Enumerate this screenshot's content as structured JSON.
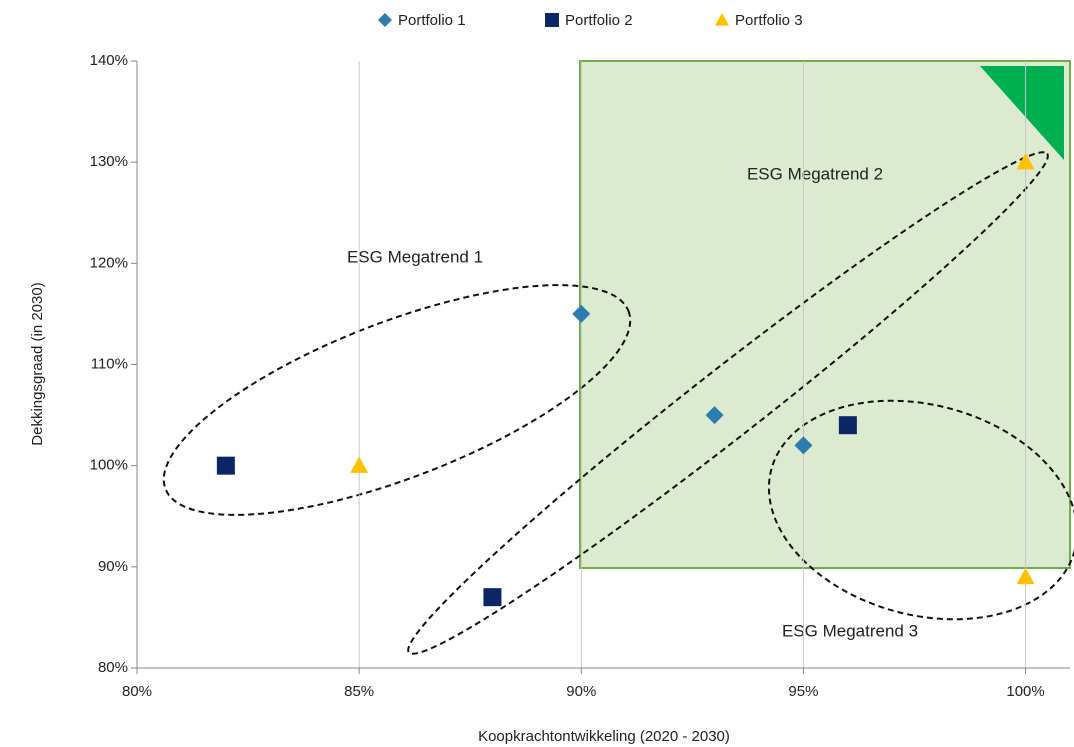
{
  "chart_data": {
    "type": "scatter",
    "x_label": "Koopkrachtontwikkeling (2020 - 2030)",
    "y_label": "Dekkingsgraad (in 2030)",
    "xlim": [
      80,
      101
    ],
    "ylim": [
      80,
      140
    ],
    "xticks": [
      {
        "value": 80,
        "label": "80%"
      },
      {
        "value": 85,
        "label": "85%"
      },
      {
        "value": 90,
        "label": "90%"
      },
      {
        "value": 95,
        "label": "95%"
      },
      {
        "value": 100,
        "label": "100%"
      }
    ],
    "yticks": [
      {
        "value": 80,
        "label": "80%"
      },
      {
        "value": 90,
        "label": "90%"
      },
      {
        "value": 100,
        "label": "100%"
      },
      {
        "value": 110,
        "label": "110%"
      },
      {
        "value": 120,
        "label": "120%"
      },
      {
        "value": 130,
        "label": "130%"
      },
      {
        "value": 140,
        "label": "140%"
      }
    ],
    "grid": true,
    "legend": "top",
    "series": [
      {
        "name": "Portfolio 1",
        "color": "#2e7bb0",
        "marker": "diamond",
        "x": [
          90,
          93,
          95
        ],
        "values": [
          115,
          105,
          102
        ]
      },
      {
        "name": "Portfolio 2",
        "color": "#0b2565",
        "marker": "square",
        "x": [
          82,
          88,
          96
        ],
        "values": [
          100,
          87,
          104
        ]
      },
      {
        "name": "Portfolio 3",
        "color": "#ffc000",
        "marker": "triangle",
        "x": [
          85,
          100,
          100
        ],
        "values": [
          100,
          130,
          89
        ]
      }
    ],
    "annotations": [
      "ESG Megatrend 1",
      "ESG Megatrend 2",
      "ESG Megatrend 3"
    ]
  }
}
